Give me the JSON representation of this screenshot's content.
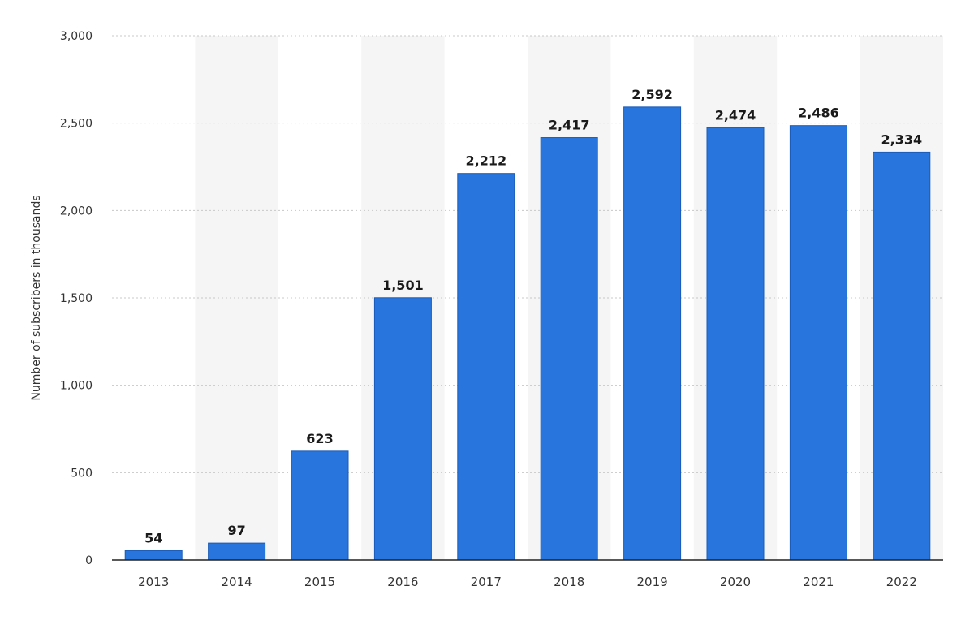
{
  "chart_data": {
    "type": "bar",
    "categories": [
      "2013",
      "2014",
      "2015",
      "2016",
      "2017",
      "2018",
      "2019",
      "2020",
      "2021",
      "2022"
    ],
    "values": [
      54,
      97,
      623,
      1501,
      2212,
      2417,
      2592,
      2474,
      2486,
      2334
    ],
    "value_labels": [
      "54",
      "97",
      "623",
      "1,501",
      "2,212",
      "2,417",
      "2,592",
      "2,474",
      "2,486",
      "2,334"
    ],
    "title": "",
    "xlabel": "",
    "ylabel": "Number of subscribers in thousands",
    "ylim": [
      0,
      3000
    ],
    "yticks": [
      0,
      500,
      1000,
      1500,
      2000,
      2500,
      3000
    ],
    "ytick_labels": [
      "0",
      "500",
      "1,000",
      "1,500",
      "2,000",
      "2,500",
      "3,000"
    ],
    "grid": true,
    "legend": "none",
    "colors": {
      "bar": "#2876dd",
      "bar_edge": "#1a5bb8",
      "band": "#f5f5f5",
      "grid": "#c8c8c8",
      "axis": "#222222"
    }
  }
}
